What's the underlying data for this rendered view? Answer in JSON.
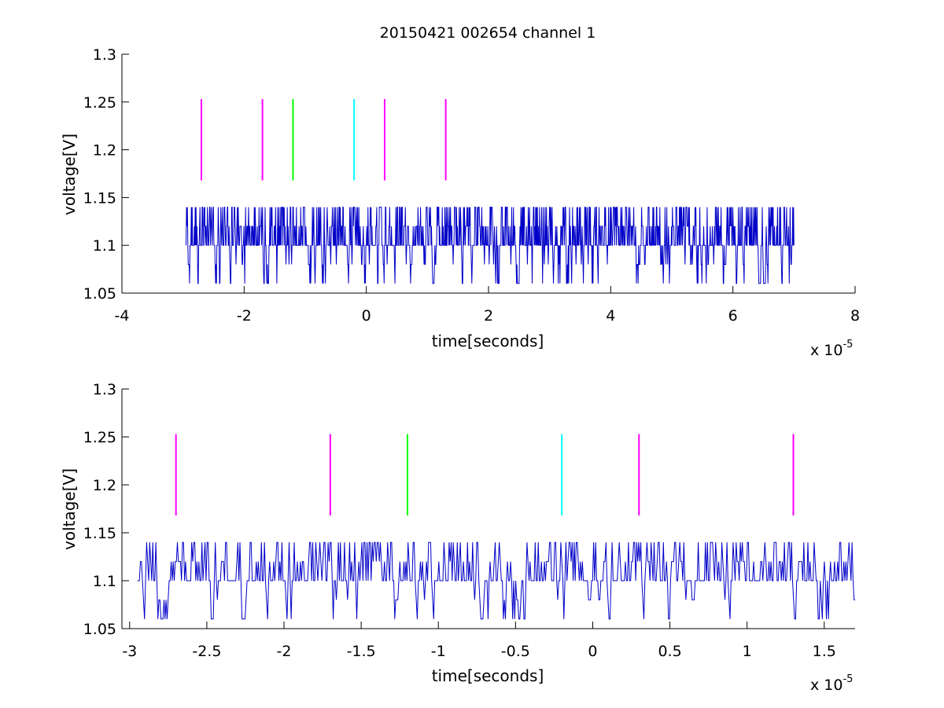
{
  "chart_data": [
    {
      "type": "line",
      "title": "20150421 002654 channel 1",
      "xlabel": "time[seconds]",
      "ylabel": "voltage[V]",
      "x_exponent_label": "x 10",
      "x_exponent_power": "-5",
      "xlim": [
        -4,
        8
      ],
      "ylim": [
        1.05,
        1.3
      ],
      "xticks": [
        -4,
        -2,
        0,
        2,
        4,
        6,
        8
      ],
      "xtick_labels": [
        "-4",
        "-2",
        "0",
        "2",
        "4",
        "6",
        "8"
      ],
      "yticks": [
        1.05,
        1.1,
        1.15,
        1.2,
        1.25,
        1.3
      ],
      "ytick_labels": [
        "1.05",
        "1.1",
        "1.15",
        "1.2",
        "1.25",
        "1.3"
      ],
      "grid": false,
      "trace": {
        "color": "#0000c8",
        "x_start": -2.95,
        "x_end": 7.0,
        "levels": [
          1.06,
          1.08,
          1.1,
          1.12,
          1.14
        ],
        "baseline": 1.1,
        "note_values": "quantized voltage trace in units of 1e-5 s"
      },
      "markers": [
        {
          "x": -2.7,
          "y0": 1.168,
          "y1": 1.253,
          "color": "#ff00ff"
        },
        {
          "x": -1.7,
          "y0": 1.168,
          "y1": 1.253,
          "color": "#ff00ff"
        },
        {
          "x": -1.2,
          "y0": 1.168,
          "y1": 1.253,
          "color": "#00ff00"
        },
        {
          "x": -0.2,
          "y0": 1.168,
          "y1": 1.253,
          "color": "#00ffff"
        },
        {
          "x": 0.3,
          "y0": 1.168,
          "y1": 1.253,
          "color": "#ff00ff"
        },
        {
          "x": 1.3,
          "y0": 1.168,
          "y1": 1.253,
          "color": "#ff00ff"
        }
      ]
    },
    {
      "type": "line",
      "title": "",
      "xlabel": "time[seconds]",
      "ylabel": "voltage[V]",
      "x_exponent_label": "x 10",
      "x_exponent_power": "-5",
      "xlim": [
        -3.05,
        1.7
      ],
      "ylim": [
        1.05,
        1.3
      ],
      "xticks": [
        -3,
        -2.5,
        -2,
        -1.5,
        -1,
        -0.5,
        0,
        0.5,
        1,
        1.5
      ],
      "xtick_labels": [
        "-3",
        "-2.5",
        "-2",
        "-1.5",
        "-1",
        "-0.5",
        "0",
        "0.5",
        "1",
        "1.5"
      ],
      "yticks": [
        1.05,
        1.1,
        1.15,
        1.2,
        1.25,
        1.3
      ],
      "ytick_labels": [
        "1.05",
        "1.1",
        "1.15",
        "1.2",
        "1.25",
        "1.3"
      ],
      "grid": false,
      "trace": {
        "color": "#0000c8",
        "x_start": -2.95,
        "x_end": 1.7,
        "levels": [
          1.06,
          1.08,
          1.1,
          1.12,
          1.14
        ],
        "baseline": 1.1
      },
      "markers": [
        {
          "x": -2.7,
          "y0": 1.168,
          "y1": 1.253,
          "color": "#ff00ff"
        },
        {
          "x": -1.7,
          "y0": 1.168,
          "y1": 1.253,
          "color": "#ff00ff"
        },
        {
          "x": -1.2,
          "y0": 1.168,
          "y1": 1.253,
          "color": "#00ff00"
        },
        {
          "x": -0.2,
          "y0": 1.168,
          "y1": 1.253,
          "color": "#00ffff"
        },
        {
          "x": 0.3,
          "y0": 1.168,
          "y1": 1.253,
          "color": "#ff00ff"
        },
        {
          "x": 1.3,
          "y0": 1.168,
          "y1": 1.253,
          "color": "#ff00ff"
        }
      ]
    }
  ]
}
